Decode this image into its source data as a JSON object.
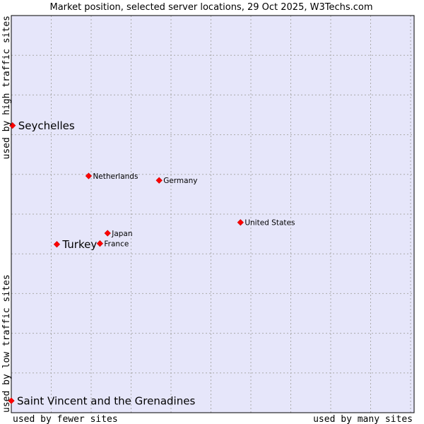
{
  "chart_data": {
    "type": "scatter",
    "title": "Market position, selected server locations, 29 Oct 2025, W3Techs.com",
    "xlabel_left": "used by fewer sites",
    "xlabel_right": "used by many sites",
    "ylabel_top": "used by high traffic sites",
    "ylabel_bottom": "used by low traffic sites",
    "xlim": [
      0,
      100
    ],
    "ylim": [
      0,
      100
    ],
    "grid": true,
    "colors": {
      "plot_background": "#e6e6fa",
      "grid": "#aaaaaa",
      "point": "#ff0000",
      "frame": "#000000",
      "text": "#000000"
    },
    "points": [
      {
        "label": "Seychelles",
        "x": 0.3,
        "y": 72.3,
        "highlight": true
      },
      {
        "label": "Netherlands",
        "x": 19.2,
        "y": 59.6,
        "highlight": false
      },
      {
        "label": "Germany",
        "x": 36.7,
        "y": 58.5,
        "highlight": false
      },
      {
        "label": "United States",
        "x": 56.9,
        "y": 47.9,
        "highlight": false
      },
      {
        "label": "Japan",
        "x": 23.9,
        "y": 45.2,
        "highlight": false
      },
      {
        "label": "France",
        "x": 22.0,
        "y": 42.6,
        "highlight": false
      },
      {
        "label": "Turkey",
        "x": 11.3,
        "y": 42.4,
        "highlight": true
      },
      {
        "label": "Saint Vincent and the Grenadines",
        "x": 0.0,
        "y": 3.0,
        "highlight": true
      }
    ]
  }
}
